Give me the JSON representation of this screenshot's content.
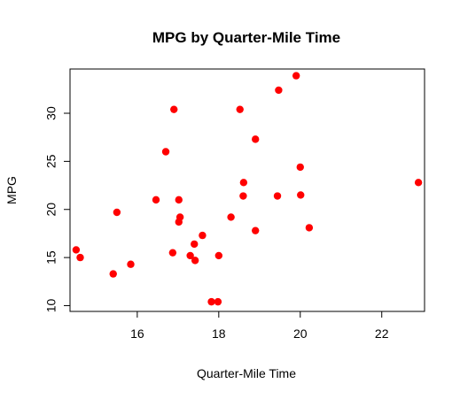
{
  "chart_data": {
    "type": "scatter",
    "title": "MPG by Quarter-Mile Time",
    "xlabel": "Quarter-Mile Time",
    "ylabel": "MPG",
    "xlim": [
      14.35,
      23.05
    ],
    "ylim": [
      9.4,
      34.6
    ],
    "xticks": [
      16,
      18,
      20,
      22
    ],
    "yticks": [
      10,
      15,
      20,
      25,
      30
    ],
    "grid": false,
    "legend": "none",
    "point_color": "#ff0000",
    "points": [
      {
        "x": 16.46,
        "y": 21.0
      },
      {
        "x": 17.02,
        "y": 21.0
      },
      {
        "x": 18.61,
        "y": 22.8
      },
      {
        "x": 19.44,
        "y": 21.4
      },
      {
        "x": 17.02,
        "y": 18.7
      },
      {
        "x": 20.22,
        "y": 18.1
      },
      {
        "x": 15.84,
        "y": 14.3
      },
      {
        "x": 20.0,
        "y": 24.4
      },
      {
        "x": 22.9,
        "y": 22.8
      },
      {
        "x": 18.3,
        "y": 19.2
      },
      {
        "x": 18.9,
        "y": 17.8
      },
      {
        "x": 17.4,
        "y": 16.4
      },
      {
        "x": 17.6,
        "y": 17.3
      },
      {
        "x": 18.0,
        "y": 15.2
      },
      {
        "x": 17.98,
        "y": 10.4
      },
      {
        "x": 17.82,
        "y": 10.4
      },
      {
        "x": 17.42,
        "y": 14.7
      },
      {
        "x": 19.47,
        "y": 32.4
      },
      {
        "x": 18.52,
        "y": 30.4
      },
      {
        "x": 19.9,
        "y": 33.9
      },
      {
        "x": 20.01,
        "y": 21.5
      },
      {
        "x": 16.87,
        "y": 15.5
      },
      {
        "x": 17.3,
        "y": 15.2
      },
      {
        "x": 15.41,
        "y": 13.3
      },
      {
        "x": 17.05,
        "y": 19.2
      },
      {
        "x": 18.9,
        "y": 27.3
      },
      {
        "x": 16.7,
        "y": 26.0
      },
      {
        "x": 16.9,
        "y": 30.4
      },
      {
        "x": 14.5,
        "y": 15.8
      },
      {
        "x": 15.5,
        "y": 19.7
      },
      {
        "x": 14.6,
        "y": 15.0
      },
      {
        "x": 18.6,
        "y": 21.4
      }
    ]
  }
}
